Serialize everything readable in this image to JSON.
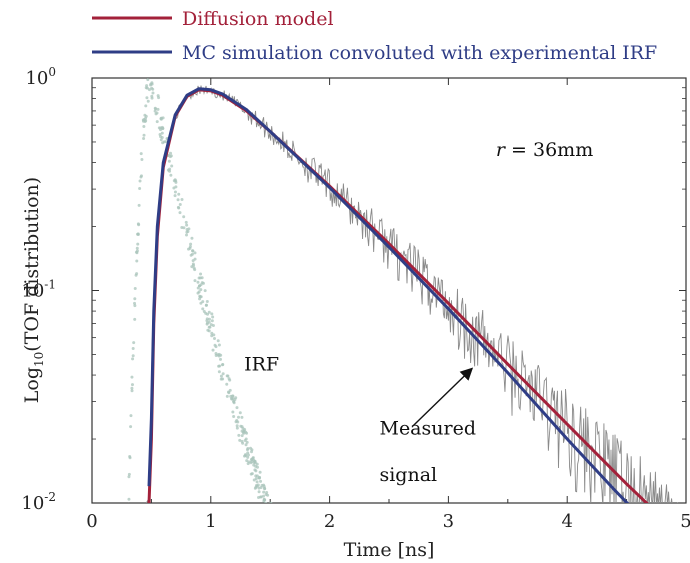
{
  "chart_data": {
    "type": "line",
    "yscale": "log",
    "xlabel": "Time [ns]",
    "ylabel": {
      "prefix": "Log",
      "sub": "10",
      "suffix": "(TOF distribution)"
    },
    "xlim": [
      0,
      5
    ],
    "ylim": [
      0.01,
      1
    ],
    "xticks": [
      0,
      1,
      2,
      3,
      4,
      5
    ],
    "xtick_labels": [
      "0",
      "1",
      "2",
      "3",
      "4",
      "5"
    ],
    "yticks": [
      0.01,
      0.1,
      1
    ],
    "ytick_labels": [
      {
        "base": "10",
        "exp": "-2"
      },
      {
        "base": "10",
        "exp": "-1"
      },
      {
        "base": "10",
        "exp": "0"
      }
    ],
    "legend_position": "top-left",
    "series": [
      {
        "name": "Diffusion model",
        "color": "#a3213a",
        "x": [
          0.48,
          0.5,
          0.52,
          0.55,
          0.6,
          0.7,
          0.8,
          0.9,
          1.0,
          1.1,
          1.3,
          1.5,
          2.0,
          2.5,
          3.0,
          3.5,
          4.0,
          4.5,
          4.8
        ],
        "y": [
          0.01,
          0.02,
          0.07,
          0.18,
          0.38,
          0.66,
          0.82,
          0.88,
          0.87,
          0.83,
          0.7,
          0.56,
          0.31,
          0.166,
          0.087,
          0.045,
          0.0235,
          0.0123,
          0.0085
        ]
      },
      {
        "name": "MC simulation convoluted with experimental IRF",
        "color": "#2f3d86",
        "x": [
          0.48,
          0.5,
          0.52,
          0.55,
          0.6,
          0.7,
          0.8,
          0.9,
          1.0,
          1.1,
          1.3,
          1.5,
          2.0,
          2.5,
          3.0,
          3.5,
          4.0,
          4.4,
          4.6
        ],
        "y": [
          0.012,
          0.025,
          0.08,
          0.2,
          0.4,
          0.67,
          0.83,
          0.89,
          0.88,
          0.84,
          0.71,
          0.56,
          0.305,
          0.16,
          0.082,
          0.041,
          0.02,
          0.0115,
          0.0088
        ]
      }
    ],
    "measured_signal": {
      "name": "Measured signal",
      "color": "#8a8a8a",
      "x_start": 0.45,
      "x_end": 5.0,
      "peak_time": 1.0,
      "peak_value": 0.88
    },
    "irf": {
      "name": "IRF",
      "color": "#a9c4bb",
      "peak_time": 0.5,
      "peak_value": 0.97,
      "x_range": [
        0.25,
        1.9
      ]
    },
    "annotations": [
      {
        "text_italic": "r",
        "text": " = 36mm",
        "color": "#a3213a",
        "x": 3.4,
        "y": 0.43
      },
      {
        "text": "IRF",
        "color": "#5e8a7c",
        "x": 1.28,
        "y": 0.042
      },
      {
        "text": "Measured",
        "color": "#111111",
        "x": 2.42,
        "y": 0.021
      },
      {
        "text": "signal",
        "color": "#111111",
        "x": 2.42,
        "y": 0.0127
      }
    ],
    "arrow": {
      "from": [
        2.7,
        0.023
      ],
      "to": [
        3.2,
        0.043
      ]
    }
  }
}
